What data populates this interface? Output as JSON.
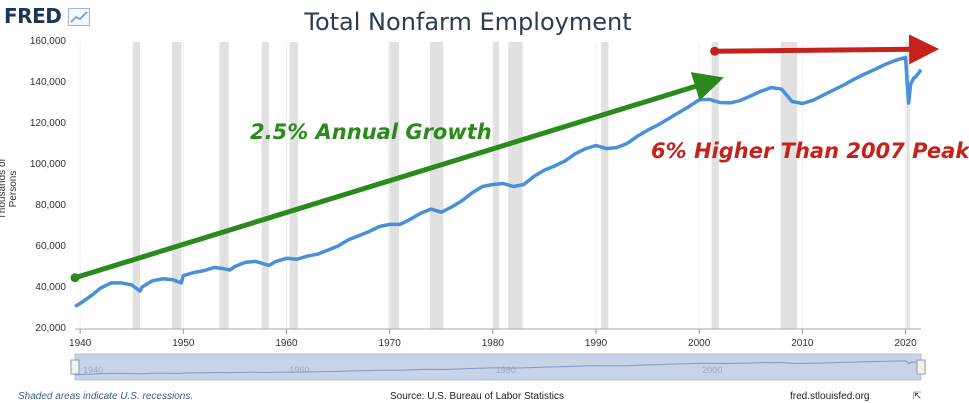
{
  "header": {
    "logo_text": "FRED",
    "logo_icon": "line-chart-icon"
  },
  "chart_data": {
    "type": "line",
    "title": "Total Nonfarm Employment",
    "ylabel": "Thousands of Persons",
    "xlabel": "",
    "xlim": [
      1939.5,
      2021.5
    ],
    "ylim": [
      20000,
      160000
    ],
    "yticks": [
      "20,000",
      "40,000",
      "60,000",
      "80,000",
      "100,000",
      "120,000",
      "140,000",
      "160,000"
    ],
    "ytick_values": [
      20000,
      40000,
      60000,
      80000,
      100000,
      120000,
      140000,
      160000
    ],
    "xticks": [
      "1940",
      "1950",
      "1960",
      "1970",
      "1980",
      "1990",
      "2000",
      "2010",
      "2020"
    ],
    "xtick_values": [
      1940,
      1950,
      1960,
      1970,
      1980,
      1990,
      2000,
      2010,
      2020
    ],
    "grid": "vertical",
    "series": [
      {
        "color": "#4a90d9",
        "x": [
          1939.5,
          1940,
          1941,
          1942,
          1943,
          1944,
          1945,
          1945.8,
          1946,
          1946.5,
          1947,
          1948,
          1949,
          1949.8,
          1950,
          1951,
          1952,
          1953,
          1953.8,
          1954.5,
          1955,
          1956,
          1957,
          1958.3,
          1959,
          1960,
          1961,
          1962,
          1963,
          1964,
          1965,
          1966,
          1967,
          1968,
          1969,
          1970,
          1971,
          1972,
          1973,
          1974,
          1975,
          1976,
          1977,
          1978,
          1979,
          1980,
          1981,
          1982,
          1983,
          1984,
          1985,
          1986,
          1987,
          1988,
          1989,
          1990,
          1991,
          1992,
          1993,
          1994,
          1995,
          1996,
          1997,
          1998,
          1999,
          2000,
          2001,
          2002,
          2003,
          2004,
          2005,
          2006,
          2007,
          2008,
          2009,
          2010,
          2011,
          2012,
          2013,
          2014,
          2015,
          2016,
          2017,
          2018,
          2019,
          2020,
          2020.3,
          2020.5,
          2020.8,
          2021,
          2021.5
        ],
        "values": [
          31000,
          32500,
          36000,
          40000,
          42500,
          42500,
          41500,
          38500,
          40500,
          42000,
          43500,
          44500,
          44000,
          42500,
          46000,
          47500,
          48500,
          50000,
          49500,
          48800,
          50500,
          52500,
          53000,
          51000,
          53000,
          54500,
          54000,
          55500,
          56500,
          58500,
          60500,
          63500,
          65500,
          67500,
          70000,
          71000,
          71000,
          73500,
          76500,
          78500,
          77000,
          79500,
          82500,
          86500,
          89500,
          90500,
          91000,
          89500,
          90500,
          94500,
          97500,
          99500,
          102000,
          105500,
          108000,
          109500,
          108000,
          108500,
          110500,
          114000,
          117000,
          119500,
          122500,
          125500,
          128500,
          131800,
          132000,
          130500,
          130300,
          131500,
          133700,
          136000,
          137800,
          137000,
          131000,
          130000,
          131500,
          134000,
          136500,
          139000,
          141800,
          144300,
          146600,
          149000,
          151000,
          152500,
          130200,
          139500,
          142500,
          143000,
          146500
        ]
      }
    ],
    "recessions": [
      [
        1945.1,
        1945.8
      ],
      [
        1948.9,
        1949.8
      ],
      [
        1953.5,
        1954.4
      ],
      [
        1957.6,
        1958.3
      ],
      [
        1960.3,
        1961.1
      ],
      [
        1969.9,
        1970.9
      ],
      [
        1973.9,
        1975.2
      ],
      [
        1980.0,
        1980.6
      ],
      [
        1981.5,
        1982.9
      ],
      [
        1990.5,
        1991.2
      ],
      [
        2001.2,
        2001.9
      ],
      [
        2007.9,
        2009.5
      ],
      [
        2020.1,
        2020.4
      ]
    ],
    "annotations": [
      {
        "text": "2.5% Annual Growth",
        "color": "#2a8a1c"
      },
      {
        "text": "6% Higher Than 2007 Peak",
        "color": "#c5221b"
      }
    ],
    "trend_arrows": [
      {
        "color": "#2a8a1c",
        "x": [
          1939.5,
          2001
        ],
        "values": [
          45000,
          140500
        ]
      },
      {
        "color": "#c5221b",
        "x": [
          2001.5,
          2021.8
        ],
        "values": [
          155500,
          156500
        ]
      }
    ],
    "navigator": {
      "labels": [
        "1940",
        "1960",
        "1980",
        "2000"
      ],
      "label_values": [
        1940,
        1960,
        1980,
        2000
      ]
    }
  },
  "footer": {
    "note": "Shaded areas indicate U.S. recessions.",
    "source": "Source: U.S. Bureau of Labor Statistics",
    "site": "fred.stlouisfed.org",
    "expand_icon": "expand-icon"
  }
}
